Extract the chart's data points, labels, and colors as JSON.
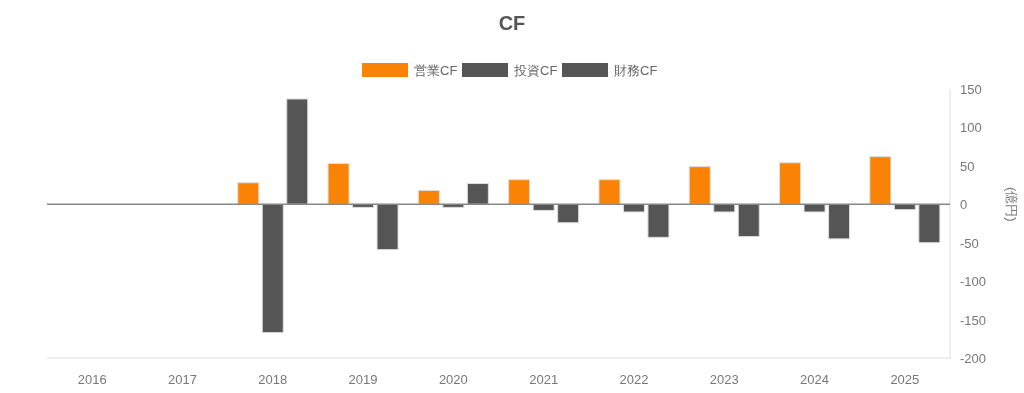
{
  "chart_data": {
    "type": "bar",
    "title": "CF",
    "y2label": "(億円)",
    "categories": [
      "2016",
      "2017",
      "2018",
      "2019",
      "2020",
      "2021",
      "2022",
      "2023",
      "2024",
      "2025"
    ],
    "series": [
      {
        "name": "営業CF",
        "color": "#fa8205",
        "axis": "y2",
        "values": [
          null,
          null,
          28,
          53,
          18,
          32,
          32,
          49,
          54,
          62
        ]
      },
      {
        "name": "投資CF",
        "color": "#555555",
        "axis": "y2",
        "values": [
          null,
          null,
          -167,
          -4,
          -4,
          -8,
          -10,
          -10,
          -10,
          -7
        ]
      },
      {
        "name": "財務CF",
        "color": "#555555",
        "axis": "y2",
        "values": [
          null,
          null,
          137,
          -59,
          27,
          -24,
          -43,
          -42,
          -45,
          -50
        ]
      }
    ],
    "y2lim": [
      -200,
      150
    ],
    "y2ticks": [
      -200,
      -150,
      -100,
      -50,
      0,
      50,
      100,
      150
    ],
    "legend": "top"
  }
}
